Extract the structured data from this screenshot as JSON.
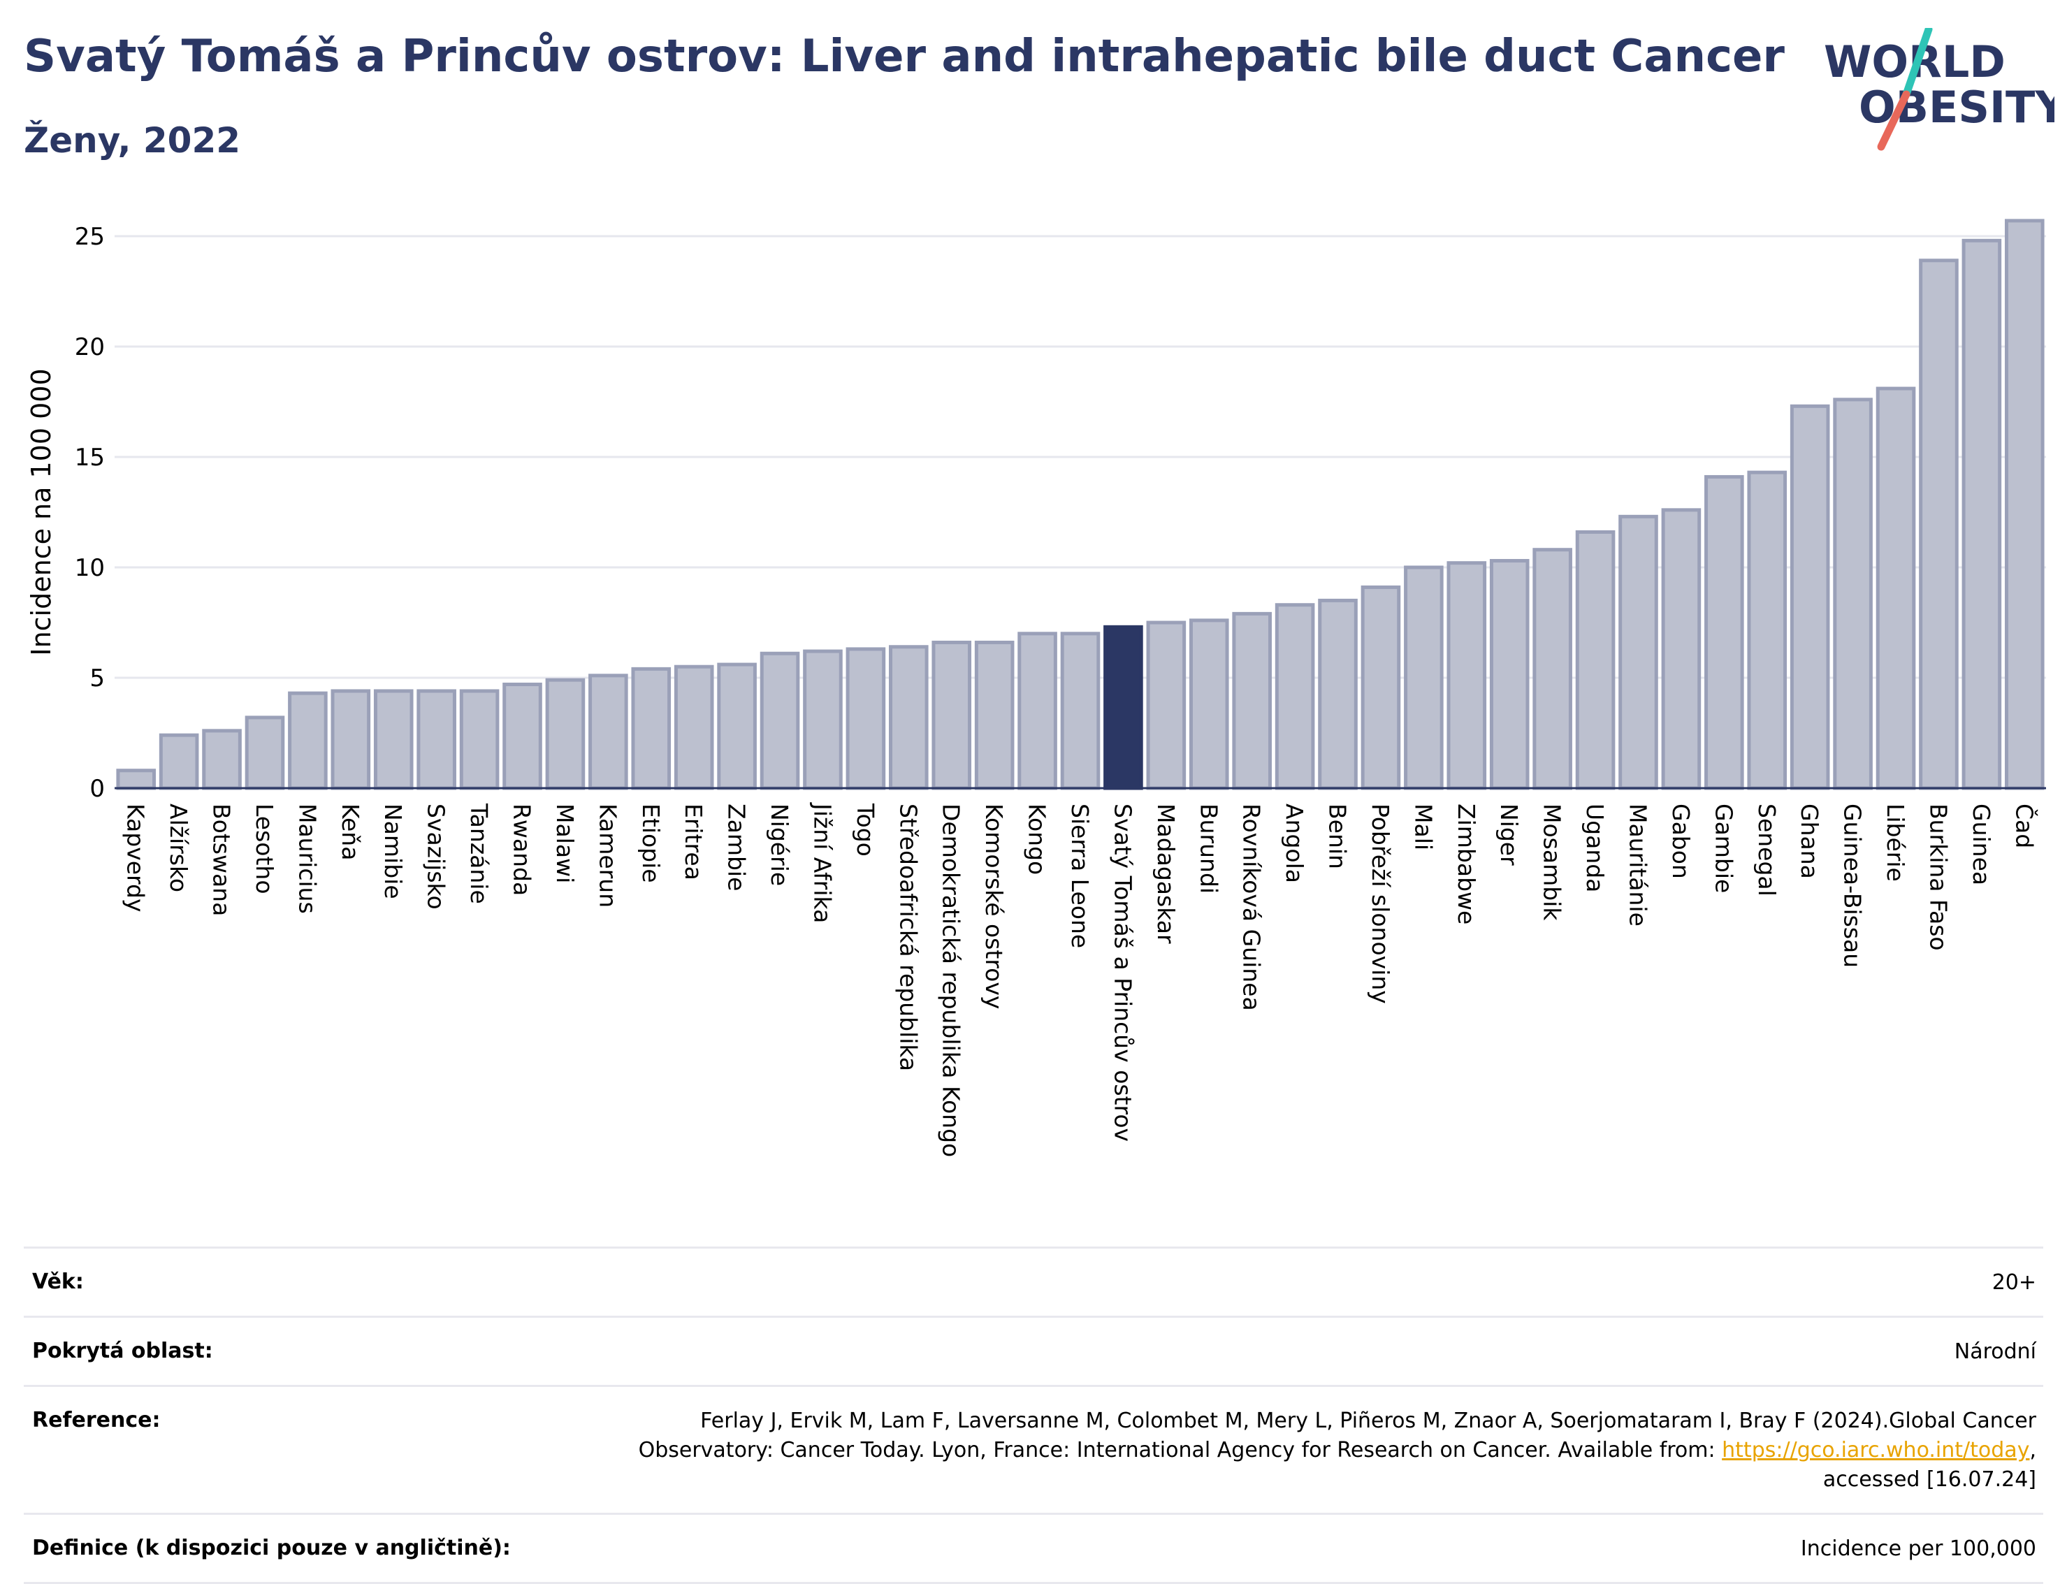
{
  "header": {
    "title": "Svatý Tomáš a Princův ostrov: Liver and intrahepatic bile duct Cancer",
    "subtitle": "Ženy, 2022"
  },
  "logo": {
    "line1": "WORLD",
    "line2": "OBESITY",
    "name": "world-obesity-logo"
  },
  "colors": {
    "bar": "#bcc0cf",
    "bar_border": "#9aa0b8",
    "highlight": "#2b3764",
    "title": "#2b3764",
    "accent_teal": "#2ec4b6",
    "accent_red": "#e8685a"
  },
  "chart_data": {
    "type": "bar",
    "ylabel": "Incidence na 100 000",
    "ylim": [
      0,
      26.5
    ],
    "yticks": [
      0,
      5,
      10,
      15,
      20,
      25
    ],
    "grid": true,
    "highlight": "Svatý Tomáš a Princův ostrov",
    "categories": [
      "Kapverdy",
      "Alžírsko",
      "Botswana",
      "Lesotho",
      "Mauricius",
      "Keňa",
      "Namibie",
      "Svazijsko",
      "Tanzánie",
      "Rwanda",
      "Malawi",
      "Kamerun",
      "Etiopie",
      "Eritrea",
      "Zambie",
      "Nigérie",
      "Jižní Afrika",
      "Togo",
      "Středoafrická republika",
      "Demokratická republika Kongo",
      "Komorské ostrovy",
      "Kongo",
      "Sierra Leone",
      "Svatý Tomáš a Princův ostrov",
      "Madagaskar",
      "Burundi",
      "Rovníková Guinea",
      "Angola",
      "Benin",
      "Pobřeží slonoviny",
      "Mali",
      "Zimbabwe",
      "Niger",
      "Mosambik",
      "Uganda",
      "Mauritánie",
      "Gabon",
      "Gambie",
      "Senegal",
      "Ghana",
      "Guinea-Bissau",
      "Libérie",
      "Burkina Faso",
      "Guinea",
      "Čad"
    ],
    "values": [
      0.8,
      2.4,
      2.6,
      3.2,
      4.3,
      4.4,
      4.4,
      4.4,
      4.4,
      4.7,
      4.9,
      5.1,
      5.4,
      5.5,
      5.6,
      6.1,
      6.2,
      6.3,
      6.4,
      6.6,
      6.6,
      7.0,
      7.0,
      7.3,
      7.5,
      7.6,
      7.9,
      8.3,
      8.5,
      9.1,
      10.0,
      10.2,
      10.3,
      10.8,
      11.6,
      12.3,
      12.6,
      14.1,
      14.3,
      17.3,
      17.6,
      18.1,
      23.9,
      24.8,
      25.7
    ]
  },
  "info": {
    "age_label": "Věk:",
    "age_value": "20+",
    "area_label": "Pokrytá oblast:",
    "area_value": "Národní",
    "ref_label": "Reference:",
    "ref_text_1": "Ferlay J, Ervik M, Lam F, Laversanne M, Colombet M, Mery L, Piñeros M, Znaor A, Soerjomataram I, Bray F (2024).Global Cancer",
    "ref_text_2": "Observatory: Cancer Today. Lyon, France: International Agency for Research on Cancer. Available from: ",
    "ref_link": "https://gco.iarc.who.int/today",
    "ref_text_3": ",",
    "ref_text_4": "accessed [16.07.24]",
    "def_label": "Definice (k dispozici pouze v angličtině):",
    "def_value": "Incidence per 100,000"
  }
}
